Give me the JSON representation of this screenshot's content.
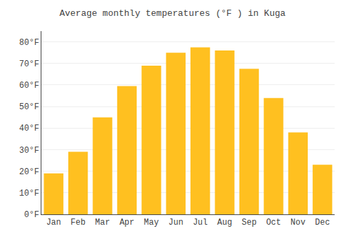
{
  "chart_data": {
    "type": "bar",
    "title": "Average monthly temperatures (°F ) in Kuɡa",
    "categories": [
      "Jan",
      "Feb",
      "Mar",
      "Apr",
      "May",
      "Jun",
      "Jul",
      "Aug",
      "Sep",
      "Oct",
      "Nov",
      "Dec"
    ],
    "values": [
      19,
      29,
      45,
      59.5,
      69,
      75,
      77.5,
      76,
      67.5,
      54,
      38,
      23
    ],
    "color": "#FFC020",
    "ylim": [
      0,
      85
    ],
    "yticks": [
      {
        "value": 0,
        "label": "0°F"
      },
      {
        "value": 10,
        "label": "10°F"
      },
      {
        "value": 20,
        "label": "20°F"
      },
      {
        "value": 30,
        "label": "30°F"
      },
      {
        "value": 40,
        "label": "40°F"
      },
      {
        "value": 50,
        "label": "50°F"
      },
      {
        "value": 60,
        "label": "60°F"
      },
      {
        "value": 70,
        "label": "70°F"
      },
      {
        "value": 80,
        "label": "80°F"
      }
    ],
    "grid": true
  }
}
